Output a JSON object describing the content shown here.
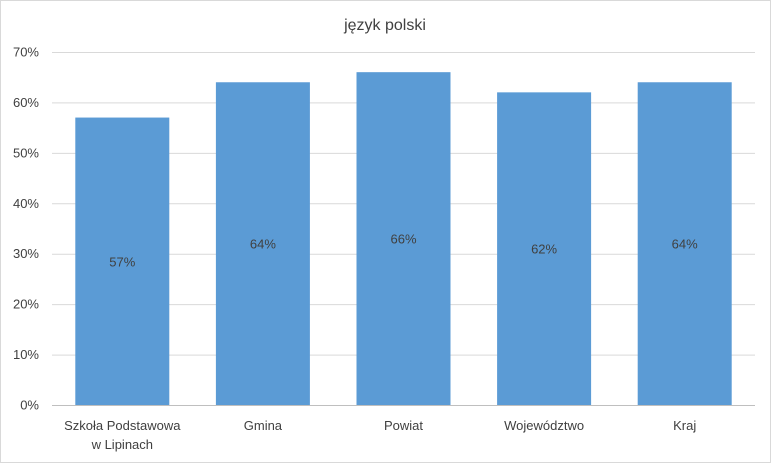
{
  "chart_data": {
    "type": "bar",
    "title": "język polski",
    "categories": [
      [
        "Szkoła Podstawowa",
        "w Lipinach"
      ],
      [
        "Gmina"
      ],
      [
        "Powiat"
      ],
      [
        "Województwo"
      ],
      [
        "Kraj"
      ]
    ],
    "values": [
      57,
      64,
      66,
      62,
      64
    ],
    "data_labels": [
      "57%",
      "64%",
      "66%",
      "62%",
      "64%"
    ],
    "y_ticks": [
      "0%",
      "10%",
      "20%",
      "30%",
      "40%",
      "50%",
      "60%",
      "70%"
    ],
    "ylim": [
      0,
      70
    ],
    "y_step": 10,
    "grid": true,
    "legend": "none",
    "bar_color": "#5b9bd5"
  }
}
